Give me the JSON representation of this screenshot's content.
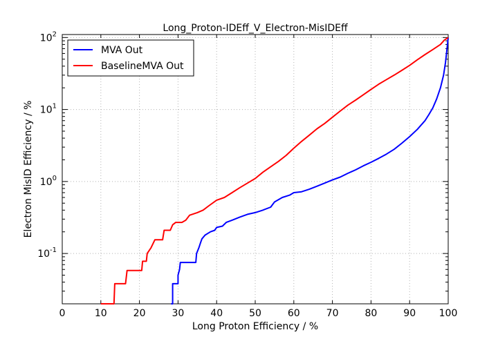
{
  "chart_data": {
    "type": "line",
    "title": "Long_Proton-IDEff_V_Electron-MisIDEff",
    "xlabel": "Long Proton Efficiency / %",
    "ylabel": "Electron MisID Efficiency / %",
    "xlim": [
      0,
      100
    ],
    "ylim": [
      0.02,
      110
    ],
    "yscale": "log",
    "grid": true,
    "legend_position": "top-left",
    "x_ticks": [
      0,
      10,
      20,
      30,
      40,
      50,
      60,
      70,
      80,
      90,
      100
    ],
    "y_ticks": [
      {
        "value": 0.1,
        "base": "10",
        "exp": "-1"
      },
      {
        "value": 1,
        "base": "10",
        "exp": "0"
      },
      {
        "value": 10,
        "base": "10",
        "exp": "1"
      },
      {
        "value": 100,
        "base": "10",
        "exp": "2"
      }
    ],
    "series": [
      {
        "name": "MVA Out",
        "color": "#0000ff",
        "points": [
          [
            28.2,
            0.02
          ],
          [
            28.6,
            0.02
          ],
          [
            28.6,
            0.038
          ],
          [
            30.0,
            0.038
          ],
          [
            30.0,
            0.05
          ],
          [
            30.4,
            0.06
          ],
          [
            30.6,
            0.075
          ],
          [
            34.6,
            0.075
          ],
          [
            34.8,
            0.1
          ],
          [
            35.4,
            0.12
          ],
          [
            35.8,
            0.14
          ],
          [
            36.2,
            0.16
          ],
          [
            37.0,
            0.18
          ],
          [
            38.4,
            0.2
          ],
          [
            39.5,
            0.21
          ],
          [
            40.0,
            0.23
          ],
          [
            41.5,
            0.24
          ],
          [
            42.5,
            0.27
          ],
          [
            44.0,
            0.29
          ],
          [
            46.0,
            0.32
          ],
          [
            48.0,
            0.35
          ],
          [
            50.0,
            0.37
          ],
          [
            52.0,
            0.4
          ],
          [
            54.0,
            0.44
          ],
          [
            55.0,
            0.52
          ],
          [
            57.0,
            0.6
          ],
          [
            59.0,
            0.65
          ],
          [
            60.0,
            0.7
          ],
          [
            62.0,
            0.72
          ],
          [
            64.0,
            0.78
          ],
          [
            66.0,
            0.86
          ],
          [
            68.0,
            0.95
          ],
          [
            70.0,
            1.05
          ],
          [
            72.0,
            1.15
          ],
          [
            74.0,
            1.3
          ],
          [
            76.0,
            1.45
          ],
          [
            78.0,
            1.65
          ],
          [
            80.0,
            1.85
          ],
          [
            82.0,
            2.1
          ],
          [
            84.0,
            2.4
          ],
          [
            86.0,
            2.8
          ],
          [
            88.0,
            3.4
          ],
          [
            90.0,
            4.2
          ],
          [
            92.0,
            5.3
          ],
          [
            94.0,
            7.0
          ],
          [
            95.0,
            8.5
          ],
          [
            96.0,
            10.5
          ],
          [
            97.0,
            14.0
          ],
          [
            98.0,
            20.0
          ],
          [
            98.8,
            30.0
          ],
          [
            99.3,
            45.0
          ],
          [
            99.7,
            70.0
          ],
          [
            100.0,
            100.0
          ]
        ]
      },
      {
        "name": "BaselineMVA Out",
        "color": "#ff0000",
        "points": [
          [
            10.0,
            0.02
          ],
          [
            13.4,
            0.02
          ],
          [
            13.6,
            0.038
          ],
          [
            16.4,
            0.038
          ],
          [
            16.8,
            0.058
          ],
          [
            20.6,
            0.058
          ],
          [
            20.8,
            0.078
          ],
          [
            21.8,
            0.078
          ],
          [
            22.0,
            0.1
          ],
          [
            23.0,
            0.12
          ],
          [
            24.0,
            0.155
          ],
          [
            26.0,
            0.155
          ],
          [
            26.4,
            0.21
          ],
          [
            28.0,
            0.21
          ],
          [
            28.6,
            0.25
          ],
          [
            29.4,
            0.27
          ],
          [
            31.0,
            0.27
          ],
          [
            32.0,
            0.29
          ],
          [
            33.0,
            0.34
          ],
          [
            35.0,
            0.37
          ],
          [
            36.5,
            0.4
          ],
          [
            38.0,
            0.46
          ],
          [
            40.0,
            0.55
          ],
          [
            42.0,
            0.6
          ],
          [
            44.0,
            0.7
          ],
          [
            46.0,
            0.82
          ],
          [
            48.0,
            0.95
          ],
          [
            50.0,
            1.1
          ],
          [
            52.0,
            1.35
          ],
          [
            54.0,
            1.6
          ],
          [
            56.0,
            1.9
          ],
          [
            58.0,
            2.3
          ],
          [
            60.0,
            2.9
          ],
          [
            62.0,
            3.6
          ],
          [
            64.0,
            4.4
          ],
          [
            66.0,
            5.4
          ],
          [
            68.0,
            6.4
          ],
          [
            70.0,
            7.8
          ],
          [
            72.0,
            9.5
          ],
          [
            74.0,
            11.5
          ],
          [
            76.0,
            13.5
          ],
          [
            78.0,
            16.0
          ],
          [
            80.0,
            19.0
          ],
          [
            82.0,
            22.5
          ],
          [
            84.0,
            26.0
          ],
          [
            86.0,
            30.0
          ],
          [
            88.0,
            35.0
          ],
          [
            90.0,
            41.0
          ],
          [
            92.0,
            49.0
          ],
          [
            94.0,
            58.0
          ],
          [
            96.0,
            68.0
          ],
          [
            98.0,
            80.0
          ],
          [
            99.0,
            92.0
          ],
          [
            100.0,
            100.0
          ]
        ]
      }
    ]
  }
}
